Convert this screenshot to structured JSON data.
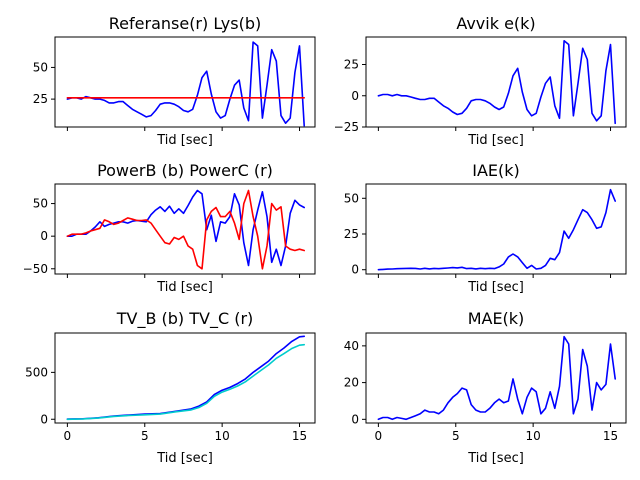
{
  "chart_data": [
    {
      "type": "line",
      "title": "Referanse(r) Lys(b)",
      "xlabel": "Tid [sec]",
      "ylabel": "",
      "xlim": [
        -0.8,
        16.0
      ],
      "ylim": [
        3,
        74
      ],
      "xticks": [
        0,
        5,
        10,
        15
      ],
      "show_xticklabels": false,
      "yticks": [
        25,
        50
      ],
      "yticklabels": [
        "25",
        "50"
      ],
      "series": [
        {
          "color": "#0000ff",
          "x": [
            0,
            0.3,
            0.6,
            0.9,
            1.2,
            1.5,
            1.8,
            2.1,
            2.4,
            2.7,
            3.0,
            3.3,
            3.6,
            3.9,
            4.2,
            4.5,
            4.8,
            5.1,
            5.4,
            5.7,
            6.0,
            6.3,
            6.6,
            6.9,
            7.2,
            7.5,
            7.8,
            8.1,
            8.4,
            8.7,
            9.0,
            9.3,
            9.6,
            9.9,
            10.2,
            10.5,
            10.8,
            11.1,
            11.4,
            11.7,
            12.0,
            12.3,
            12.6,
            12.9,
            13.2,
            13.5,
            13.8,
            14.1,
            14.4,
            14.7,
            15.0,
            15.3
          ],
          "y": [
            25,
            26,
            26,
            25,
            27,
            26,
            25,
            25,
            24,
            22,
            22,
            23,
            23,
            20,
            17,
            15,
            13,
            11,
            12,
            16,
            21,
            22,
            22,
            21,
            19,
            16,
            15,
            17,
            28,
            42,
            47,
            29,
            15,
            10,
            12,
            25,
            36,
            40,
            18,
            8,
            70,
            67,
            10,
            36,
            64,
            55,
            12,
            6,
            10,
            46,
            67,
            4
          ]
        },
        {
          "color": "#ff0000",
          "x": [
            0,
            15.3
          ],
          "y": [
            26,
            26
          ]
        }
      ]
    },
    {
      "type": "line",
      "title": "Avvik e(k)",
      "xlabel": "Tid [sec]",
      "ylabel": "",
      "xlim": [
        -0.8,
        16.0
      ],
      "ylim": [
        -25,
        47
      ],
      "xticks": [
        0,
        5,
        10,
        15
      ],
      "show_xticklabels": false,
      "yticks": [
        -25,
        0,
        25
      ],
      "yticklabels": [
        "−25",
        "0",
        "25"
      ],
      "series": [
        {
          "color": "#0000ff",
          "x": [
            0,
            0.3,
            0.6,
            0.9,
            1.2,
            1.5,
            1.8,
            2.1,
            2.4,
            2.7,
            3.0,
            3.3,
            3.6,
            3.9,
            4.2,
            4.5,
            4.8,
            5.1,
            5.4,
            5.7,
            6.0,
            6.3,
            6.6,
            6.9,
            7.2,
            7.5,
            7.8,
            8.1,
            8.4,
            8.7,
            9.0,
            9.3,
            9.6,
            9.9,
            10.2,
            10.5,
            10.8,
            11.1,
            11.4,
            11.7,
            12.0,
            12.3,
            12.6,
            12.9,
            13.2,
            13.5,
            13.8,
            14.1,
            14.4,
            14.7,
            15.0,
            15.3
          ],
          "y": [
            0,
            1,
            1,
            0,
            1,
            0,
            0,
            -1,
            -2,
            -3,
            -3,
            -2,
            -2,
            -5,
            -8,
            -10,
            -13,
            -15,
            -14,
            -10,
            -4,
            -3,
            -3,
            -4,
            -6,
            -9,
            -11,
            -9,
            2,
            16,
            22,
            3,
            -11,
            -16,
            -14,
            -1,
            10,
            15,
            -8,
            -18,
            44,
            41,
            -16,
            10,
            38,
            29,
            -14,
            -20,
            -16,
            20,
            41,
            -22
          ]
        }
      ]
    },
    {
      "type": "line",
      "title": "PowerB (b) PowerC (r)",
      "xlabel": "Tid [sec]",
      "ylabel": "",
      "xlim": [
        -0.8,
        16.0
      ],
      "ylim": [
        -58,
        80
      ],
      "xticks": [
        0,
        5,
        10,
        15
      ],
      "show_xticklabels": false,
      "yticks": [
        -50,
        0,
        50
      ],
      "yticklabels": [
        "−50",
        "0",
        "50"
      ],
      "series": [
        {
          "color": "#0000ff",
          "x": [
            0,
            0.3,
            0.6,
            0.9,
            1.2,
            1.5,
            1.8,
            2.1,
            2.4,
            2.7,
            3.0,
            3.3,
            3.6,
            3.9,
            4.2,
            4.5,
            4.8,
            5.1,
            5.4,
            5.7,
            6.0,
            6.3,
            6.6,
            6.9,
            7.2,
            7.5,
            7.8,
            8.1,
            8.4,
            8.7,
            9.0,
            9.3,
            9.6,
            9.9,
            10.2,
            10.5,
            10.8,
            11.1,
            11.4,
            11.7,
            12.0,
            12.3,
            12.6,
            12.9,
            13.2,
            13.5,
            13.8,
            14.1,
            14.4,
            14.7,
            15.0,
            15.3
          ],
          "y": [
            0,
            0,
            3,
            3,
            3,
            8,
            14,
            22,
            15,
            18,
            20,
            22,
            22,
            20,
            23,
            24,
            23,
            22,
            33,
            40,
            45,
            38,
            46,
            35,
            42,
            35,
            47,
            60,
            70,
            65,
            10,
            32,
            -8,
            22,
            20,
            30,
            65,
            48,
            -10,
            -45,
            10,
            40,
            68,
            30,
            -40,
            -20,
            -45,
            -15,
            35,
            55,
            48,
            44
          ]
        },
        {
          "color": "#ff0000",
          "x": [
            0,
            0.3,
            0.6,
            0.9,
            1.2,
            1.5,
            1.8,
            2.1,
            2.4,
            2.7,
            3.0,
            3.3,
            3.6,
            3.9,
            4.2,
            4.5,
            4.8,
            5.1,
            5.4,
            5.7,
            6.0,
            6.3,
            6.6,
            6.9,
            7.2,
            7.5,
            7.8,
            8.1,
            8.4,
            8.7,
            9.0,
            9.3,
            9.6,
            9.9,
            10.2,
            10.5,
            10.8,
            11.1,
            11.4,
            11.7,
            12.0,
            12.3,
            12.6,
            12.9,
            13.2,
            13.5,
            13.8,
            14.1,
            14.4,
            14.7,
            15.0,
            15.3
          ],
          "y": [
            0,
            3,
            3,
            3,
            5,
            8,
            10,
            12,
            25,
            22,
            18,
            20,
            24,
            28,
            26,
            24,
            24,
            25,
            20,
            10,
            0,
            -10,
            -12,
            -2,
            -5,
            0,
            -15,
            -20,
            -45,
            -50,
            25,
            38,
            44,
            30,
            30,
            38,
            20,
            -5,
            50,
            70,
            30,
            0,
            -50,
            -15,
            50,
            40,
            45,
            -15,
            -20,
            -22,
            -20,
            -22
          ]
        }
      ]
    },
    {
      "type": "line",
      "title": "IAE(k)",
      "xlabel": "Tid [sec]",
      "ylabel": "",
      "xlim": [
        -0.8,
        16.0
      ],
      "ylim": [
        -3,
        60
      ],
      "xticks": [
        0,
        5,
        10,
        15
      ],
      "show_xticklabels": false,
      "yticks": [
        0,
        25,
        50
      ],
      "yticklabels": [
        "0",
        "25",
        "50"
      ],
      "series": [
        {
          "color": "#0000ff",
          "x": [
            0,
            0.3,
            0.6,
            0.9,
            1.2,
            1.5,
            1.8,
            2.1,
            2.4,
            2.7,
            3.0,
            3.3,
            3.6,
            3.9,
            4.2,
            4.5,
            4.8,
            5.1,
            5.4,
            5.7,
            6.0,
            6.3,
            6.6,
            6.9,
            7.2,
            7.5,
            7.8,
            8.1,
            8.4,
            8.7,
            9.0,
            9.3,
            9.6,
            9.9,
            10.2,
            10.5,
            10.8,
            11.1,
            11.4,
            11.7,
            12.0,
            12.3,
            12.6,
            12.9,
            13.2,
            13.5,
            13.8,
            14.1,
            14.4,
            14.7,
            15.0,
            15.3
          ],
          "y": [
            0,
            0.2,
            0.4,
            0.5,
            0.7,
            0.8,
            0.9,
            1,
            0.9,
            0.5,
            1,
            0.6,
            0.9,
            0.7,
            1,
            1.2,
            1.5,
            1.3,
            1.7,
            0.8,
            1,
            0.6,
            1,
            0.7,
            1,
            0.8,
            2,
            4,
            9,
            11,
            9,
            5,
            1,
            3,
            0.5,
            1,
            3,
            8,
            7,
            12,
            27,
            22,
            28,
            35,
            42,
            40,
            35,
            29,
            30,
            40,
            56,
            48
          ]
        }
      ]
    },
    {
      "type": "line",
      "title": "TV_B (b) TV_C (r)",
      "xlabel": "Tid [sec]",
      "ylabel": "",
      "xlim": [
        -0.8,
        16.0
      ],
      "ylim": [
        -40,
        920
      ],
      "xticks": [
        0,
        5,
        10,
        15
      ],
      "xticklabels": [
        "0",
        "5",
        "10",
        "15"
      ],
      "show_xticklabels": true,
      "yticks": [
        0,
        500
      ],
      "yticklabels": [
        "0",
        "500"
      ],
      "series": [
        {
          "color": "#0000ff",
          "x": [
            0,
            1,
            2,
            3,
            4,
            5,
            6,
            7,
            8,
            8.5,
            9,
            9.5,
            10,
            10.5,
            11,
            11.5,
            12,
            12.5,
            13,
            13.5,
            14,
            14.5,
            15,
            15.3
          ],
          "y": [
            2,
            5,
            15,
            35,
            45,
            55,
            60,
            85,
            110,
            140,
            185,
            265,
            310,
            340,
            380,
            430,
            500,
            560,
            620,
            700,
            760,
            830,
            880,
            885
          ]
        },
        {
          "color": "#00cccc",
          "x": [
            0,
            1,
            2,
            3,
            4,
            5,
            6,
            7,
            8,
            8.5,
            9,
            9.5,
            10,
            10.5,
            11,
            11.5,
            12,
            12.5,
            13,
            13.5,
            14,
            14.5,
            15,
            15.3
          ],
          "y": [
            0,
            4,
            12,
            30,
            40,
            48,
            55,
            80,
            100,
            125,
            170,
            245,
            290,
            320,
            355,
            400,
            460,
            520,
            580,
            650,
            700,
            755,
            790,
            795
          ]
        }
      ]
    },
    {
      "type": "line",
      "title": "MAE(k)",
      "xlabel": "Tid [sec]",
      "ylabel": "",
      "xlim": [
        -0.8,
        16.0
      ],
      "ylim": [
        -2,
        47
      ],
      "xticks": [
        0,
        5,
        10,
        15
      ],
      "xticklabels": [
        "0",
        "5",
        "10",
        "15"
      ],
      "show_xticklabels": true,
      "yticks": [
        0,
        20,
        40
      ],
      "yticklabels": [
        "0",
        "20",
        "40"
      ],
      "series": [
        {
          "color": "#0000ff",
          "x": [
            0,
            0.3,
            0.6,
            0.9,
            1.2,
            1.5,
            1.8,
            2.1,
            2.4,
            2.7,
            3.0,
            3.3,
            3.6,
            3.9,
            4.2,
            4.5,
            4.8,
            5.1,
            5.4,
            5.7,
            6.0,
            6.3,
            6.6,
            6.9,
            7.2,
            7.5,
            7.8,
            8.1,
            8.4,
            8.7,
            9.0,
            9.3,
            9.6,
            9.9,
            10.2,
            10.5,
            10.8,
            11.1,
            11.4,
            11.7,
            12.0,
            12.3,
            12.6,
            12.9,
            13.2,
            13.5,
            13.8,
            14.1,
            14.4,
            14.7,
            15.0,
            15.3
          ],
          "y": [
            0,
            1,
            1,
            0,
            1,
            0.5,
            0,
            1,
            2,
            3,
            5,
            4,
            4,
            3,
            5,
            9,
            12,
            14,
            17,
            16,
            8,
            5,
            4,
            4,
            6,
            9,
            11,
            9,
            10,
            22,
            11,
            3,
            12,
            17,
            15,
            3,
            6,
            15,
            6,
            18,
            45,
            41,
            3,
            11,
            38,
            29,
            5,
            20,
            16,
            19,
            41,
            22
          ]
        }
      ]
    }
  ]
}
